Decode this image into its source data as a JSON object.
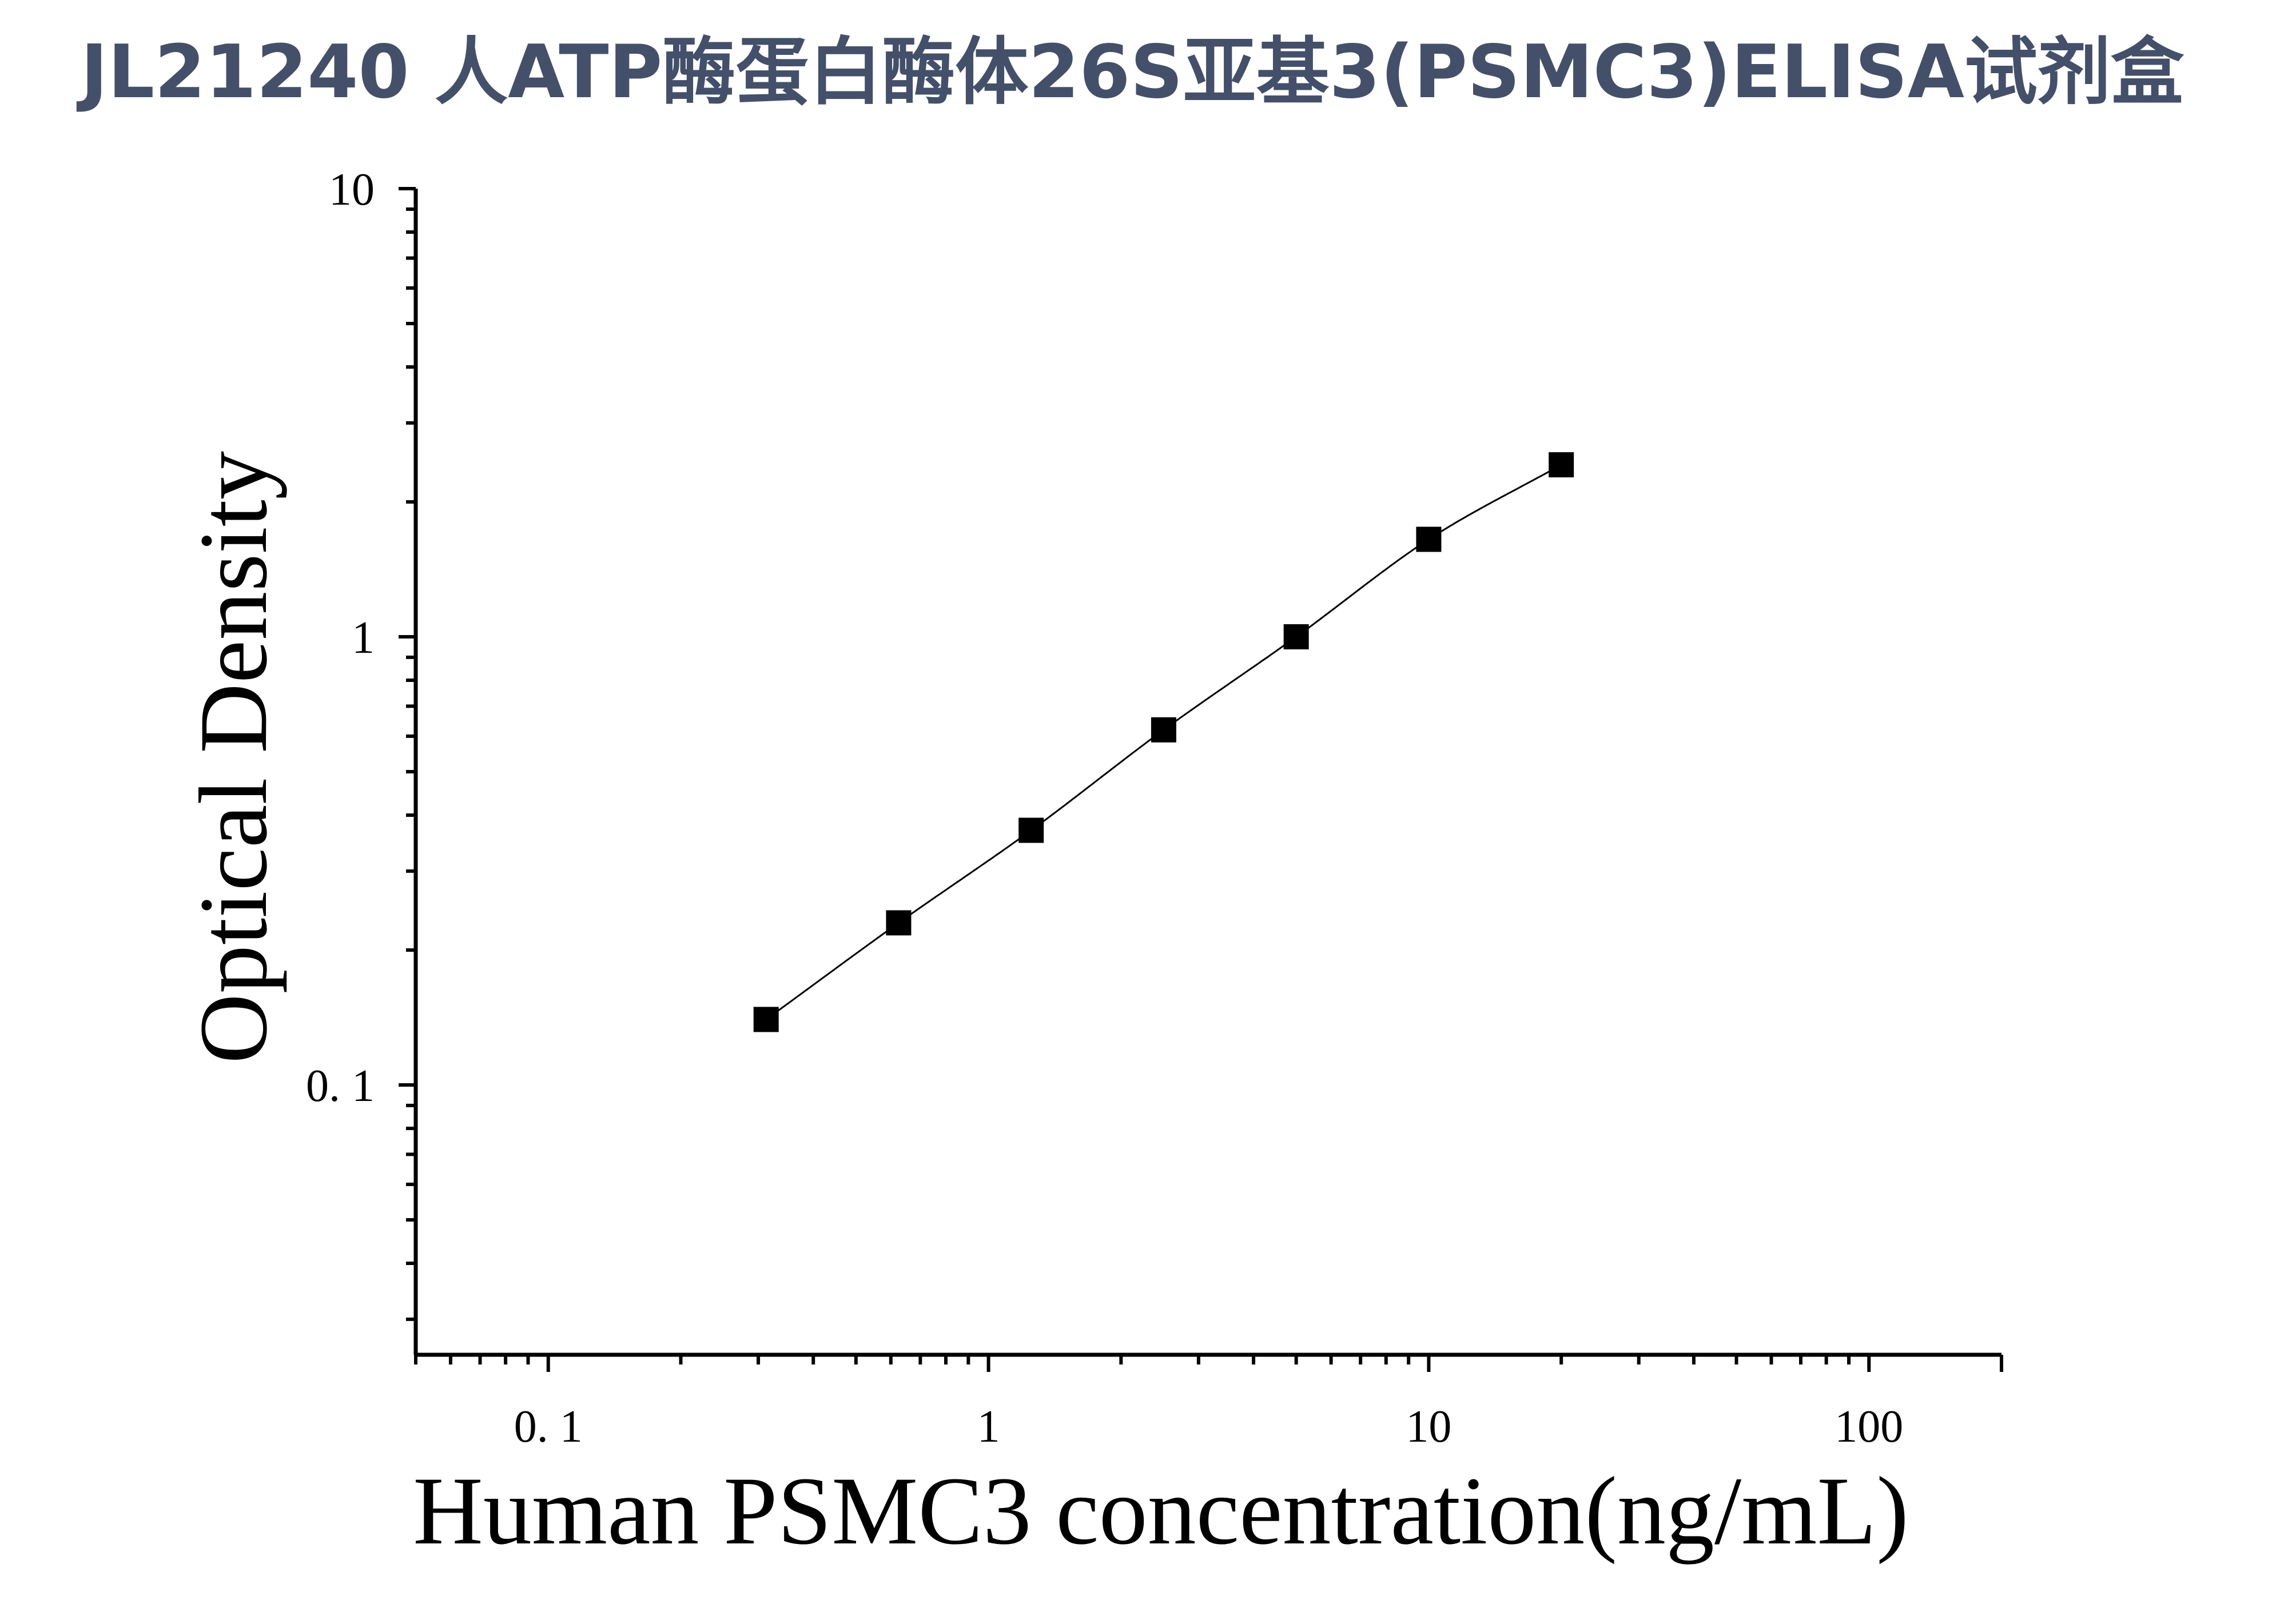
{
  "colors": {
    "title": "#44506a",
    "axis": "#000000",
    "marker": "#000000",
    "curve": "#000000",
    "background": "#ffffff"
  },
  "chart_data": {
    "type": "scatter",
    "title": "JL21240 人ATP酶蛋白酶体26S亚基3(PSMC3)ELISA试剂盒",
    "xlabel": "Human PSMC3 concentration(ng/mL)",
    "ylabel": "Optical Density",
    "xscale": "log",
    "yscale": "log",
    "xlim": [
      0.05,
      200
    ],
    "ylim": [
      0.025,
      10
    ],
    "x_ticks": [
      0.1,
      1,
      10,
      100
    ],
    "x_tick_labels": [
      "0. 1",
      "1",
      "10",
      "100"
    ],
    "y_ticks": [
      0.1,
      1,
      10
    ],
    "y_tick_labels": [
      "0. 1",
      "1",
      "10"
    ],
    "grid": false,
    "marker": "square",
    "series": [
      {
        "x": [
          0.3125,
          0.625,
          1.25,
          2.5,
          5,
          10,
          20
        ],
        "y": [
          0.14,
          0.23,
          0.37,
          0.62,
          1.0,
          1.65,
          2.42
        ]
      }
    ],
    "fit_curve": true
  }
}
